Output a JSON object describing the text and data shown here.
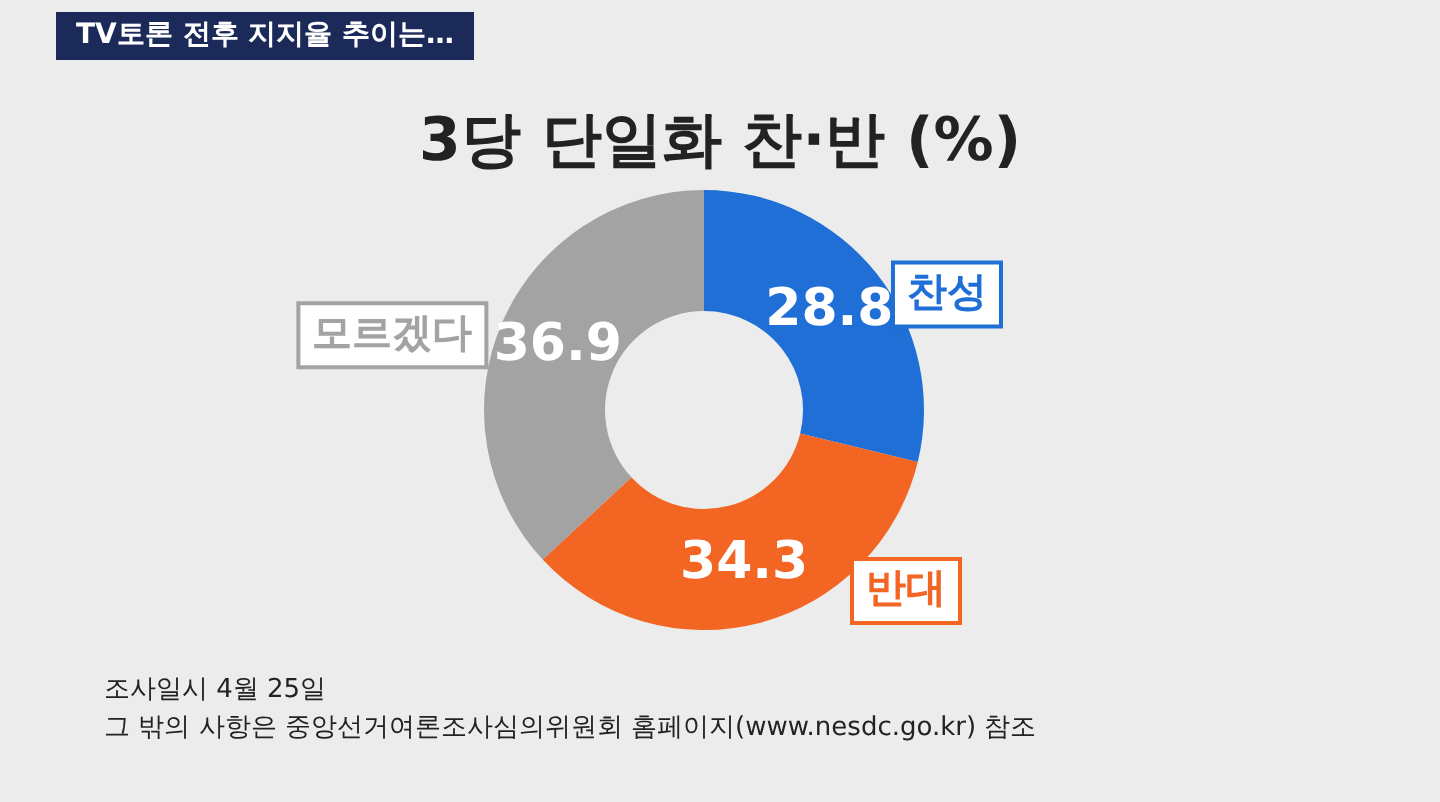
{
  "chart_data": {
    "type": "donut",
    "title": "3당 단일화 찬·반 (%)",
    "subtitle": "TV토론 전후 지지율 추이는…",
    "categories": [
      "찬성",
      "반대",
      "모르겠다"
    ],
    "values": [
      28.8,
      34.3,
      36.9
    ],
    "colors": [
      "#1f6fd6",
      "#f26522",
      "#a3a3a3"
    ],
    "data_labels": true,
    "legend": false,
    "annotations": [
      "조사일시 4월 25일",
      "그 밖의 사항은 중앙선거여론조사심의위원회 홈페이지(www.nesdc.go.kr) 참조"
    ]
  }
}
